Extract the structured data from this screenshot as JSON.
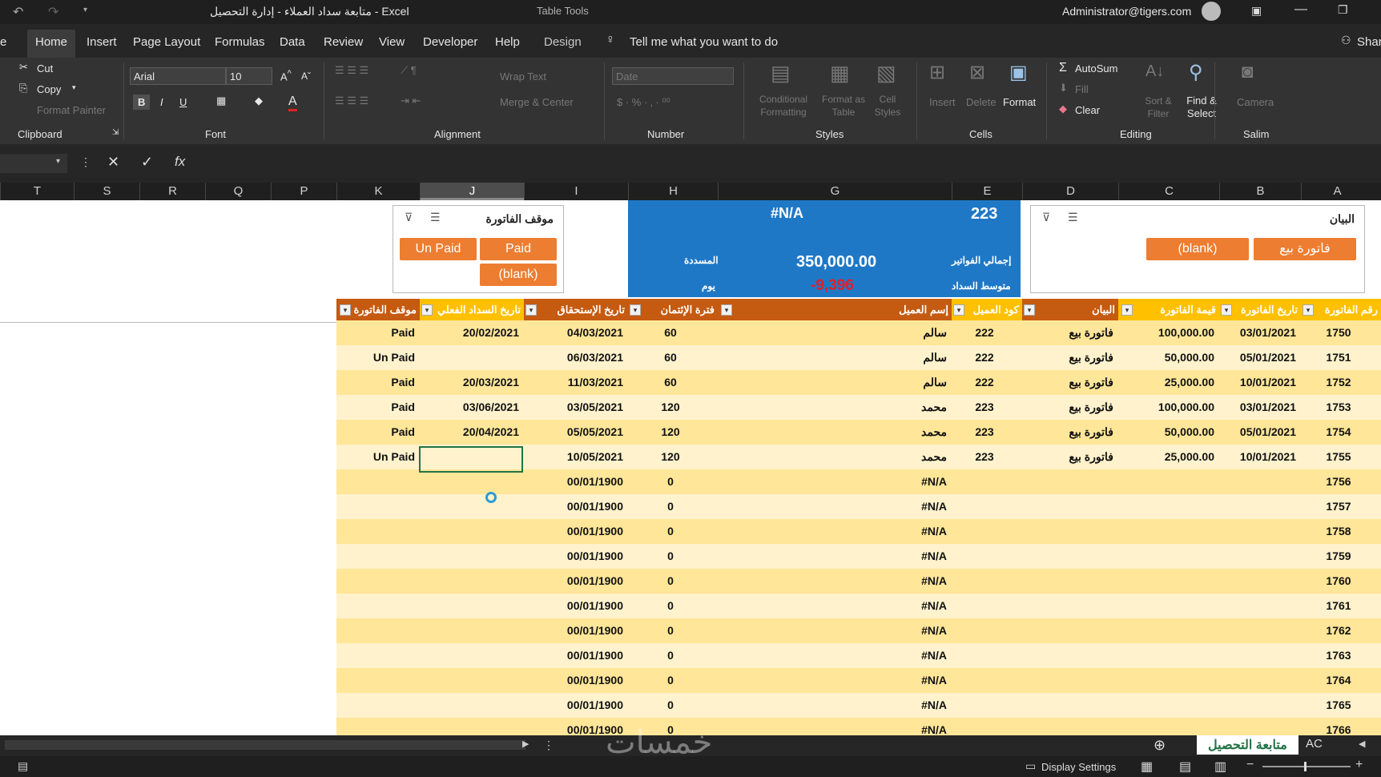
{
  "title_bar": {
    "title": "متابعة سداد العملاء - إدارة التحصيل  -  Excel",
    "context_tab": "Table Tools",
    "account": "Administrator@tigers.com"
  },
  "tabs": [
    "Home",
    "Insert",
    "Page Layout",
    "Formulas",
    "Data",
    "Review",
    "View",
    "Developer",
    "Help",
    "Design"
  ],
  "tell_me": "Tell me what you want to do",
  "share": "Shar",
  "ribbon": {
    "clipboard": {
      "cut": "Cut",
      "copy": "Copy",
      "format_painter": "Format Painter",
      "label": "Clipboard"
    },
    "font": {
      "name": "Arial",
      "size": "10",
      "label": "Font",
      "bold": "B",
      "italic": "I",
      "underline": "U",
      "color": "A"
    },
    "alignment": {
      "wrap": "Wrap Text",
      "merge": "Merge & Center",
      "label": "Alignment"
    },
    "number": {
      "format": "Date",
      "label": "Number"
    },
    "styles": {
      "conditional": "Conditional Formatting",
      "format_table": "Format as Table",
      "cell_styles": "Cell Styles",
      "label": "Styles"
    },
    "cells": {
      "insert": "Insert",
      "delete": "Delete",
      "format": "Format",
      "label": "Cells"
    },
    "editing": {
      "autosum": "AutoSum",
      "fill": "Fill",
      "clear": "Clear",
      "sort": "Sort & Filter",
      "find": "Find & Select",
      "label": "Editing"
    },
    "salim": {
      "camera": "Camera",
      "label": "Salim"
    }
  },
  "columns": [
    "T",
    "S",
    "R",
    "Q",
    "P",
    "K",
    "J",
    "I",
    "H",
    "G",
    "E",
    "D",
    "C",
    "B",
    "A"
  ],
  "selected_column": "J",
  "slicer_status": {
    "title": "موقف الفاتورة",
    "buttons": [
      "Un Paid",
      "Paid",
      "(blank)"
    ]
  },
  "slicer_statement": {
    "title": "البيان",
    "buttons": [
      "(blank)",
      "فاتورة بيع"
    ]
  },
  "kpi": {
    "code": "223",
    "na": "#N/A",
    "total_label": "إجمالي الفواتير",
    "paid_label": "المسددة",
    "total_value": "350,000.00",
    "avg_label": "متوسط السداد",
    "days_label": "يوم",
    "avg_value": "-9,396"
  },
  "table_headers": {
    "status": "موقف الفاتورة",
    "actual_pay": "تاريخ السداد الفعلي",
    "due": "تاريخ الإستحقاق",
    "credit": "فترة الإئتمان",
    "client": "إسم العميل",
    "code": "كود العميل",
    "statement": "البيان",
    "value": "قيمة الفاتورة",
    "date": "تاريخ الفاتورة",
    "num": "رقم الفاتورة"
  },
  "rows": [
    {
      "status": "Paid",
      "paid": "20/02/2021",
      "due": "04/03/2021",
      "credit": "60",
      "client": "سالم",
      "code": "222",
      "stmt": "فاتورة بيع",
      "value": "100,000.00",
      "date": "03/01/2021",
      "num": "1750"
    },
    {
      "status": "Un Paid",
      "paid": "",
      "due": "06/03/2021",
      "credit": "60",
      "client": "سالم",
      "code": "222",
      "stmt": "فاتورة بيع",
      "value": "50,000.00",
      "date": "05/01/2021",
      "num": "1751"
    },
    {
      "status": "Paid",
      "paid": "20/03/2021",
      "due": "11/03/2021",
      "credit": "60",
      "client": "سالم",
      "code": "222",
      "stmt": "فاتورة بيع",
      "value": "25,000.00",
      "date": "10/01/2021",
      "num": "1752"
    },
    {
      "status": "Paid",
      "paid": "03/06/2021",
      "due": "03/05/2021",
      "credit": "120",
      "client": "محمد",
      "code": "223",
      "stmt": "فاتورة بيع",
      "value": "100,000.00",
      "date": "03/01/2021",
      "num": "1753"
    },
    {
      "status": "Paid",
      "paid": "20/04/2021",
      "due": "05/05/2021",
      "credit": "120",
      "client": "محمد",
      "code": "223",
      "stmt": "فاتورة بيع",
      "value": "50,000.00",
      "date": "05/01/2021",
      "num": "1754"
    },
    {
      "status": "Un Paid",
      "paid": "",
      "due": "10/05/2021",
      "credit": "120",
      "client": "محمد",
      "code": "223",
      "stmt": "فاتورة بيع",
      "value": "25,000.00",
      "date": "10/01/2021",
      "num": "1755"
    },
    {
      "status": "",
      "paid": "",
      "due": "00/01/1900",
      "credit": "0",
      "client": "#N/A",
      "code": "",
      "stmt": "",
      "value": "",
      "date": "",
      "num": "1756"
    },
    {
      "status": "",
      "paid": "",
      "due": "00/01/1900",
      "credit": "0",
      "client": "#N/A",
      "code": "",
      "stmt": "",
      "value": "",
      "date": "",
      "num": "1757"
    },
    {
      "status": "",
      "paid": "",
      "due": "00/01/1900",
      "credit": "0",
      "client": "#N/A",
      "code": "",
      "stmt": "",
      "value": "",
      "date": "",
      "num": "1758"
    },
    {
      "status": "",
      "paid": "",
      "due": "00/01/1900",
      "credit": "0",
      "client": "#N/A",
      "code": "",
      "stmt": "",
      "value": "",
      "date": "",
      "num": "1759"
    },
    {
      "status": "",
      "paid": "",
      "due": "00/01/1900",
      "credit": "0",
      "client": "#N/A",
      "code": "",
      "stmt": "",
      "value": "",
      "date": "",
      "num": "1760"
    },
    {
      "status": "",
      "paid": "",
      "due": "00/01/1900",
      "credit": "0",
      "client": "#N/A",
      "code": "",
      "stmt": "",
      "value": "",
      "date": "",
      "num": "1761"
    },
    {
      "status": "",
      "paid": "",
      "due": "00/01/1900",
      "credit": "0",
      "client": "#N/A",
      "code": "",
      "stmt": "",
      "value": "",
      "date": "",
      "num": "1762"
    },
    {
      "status": "",
      "paid": "",
      "due": "00/01/1900",
      "credit": "0",
      "client": "#N/A",
      "code": "",
      "stmt": "",
      "value": "",
      "date": "",
      "num": "1763"
    },
    {
      "status": "",
      "paid": "",
      "due": "00/01/1900",
      "credit": "0",
      "client": "#N/A",
      "code": "",
      "stmt": "",
      "value": "",
      "date": "",
      "num": "1764"
    },
    {
      "status": "",
      "paid": "",
      "due": "00/01/1900",
      "credit": "0",
      "client": "#N/A",
      "code": "",
      "stmt": "",
      "value": "",
      "date": "",
      "num": "1765"
    },
    {
      "status": "",
      "paid": "",
      "due": "00/01/1900",
      "credit": "0",
      "client": "#N/A",
      "code": "",
      "stmt": "",
      "value": "",
      "date": "",
      "num": "1766"
    }
  ],
  "sheet_tabs": [
    "متابعة التحصيل",
    "AC"
  ],
  "watermark": "خمسات",
  "status": {
    "display": "Display Settings"
  },
  "colors": {
    "orange": "#ed7d31",
    "header_dark": "#c55a11",
    "header_gold": "#ffc000",
    "row_a": "#ffe699",
    "row_b": "#fff2cc",
    "kpi_blue": "#1f78c6",
    "negative": "#e0202a"
  }
}
